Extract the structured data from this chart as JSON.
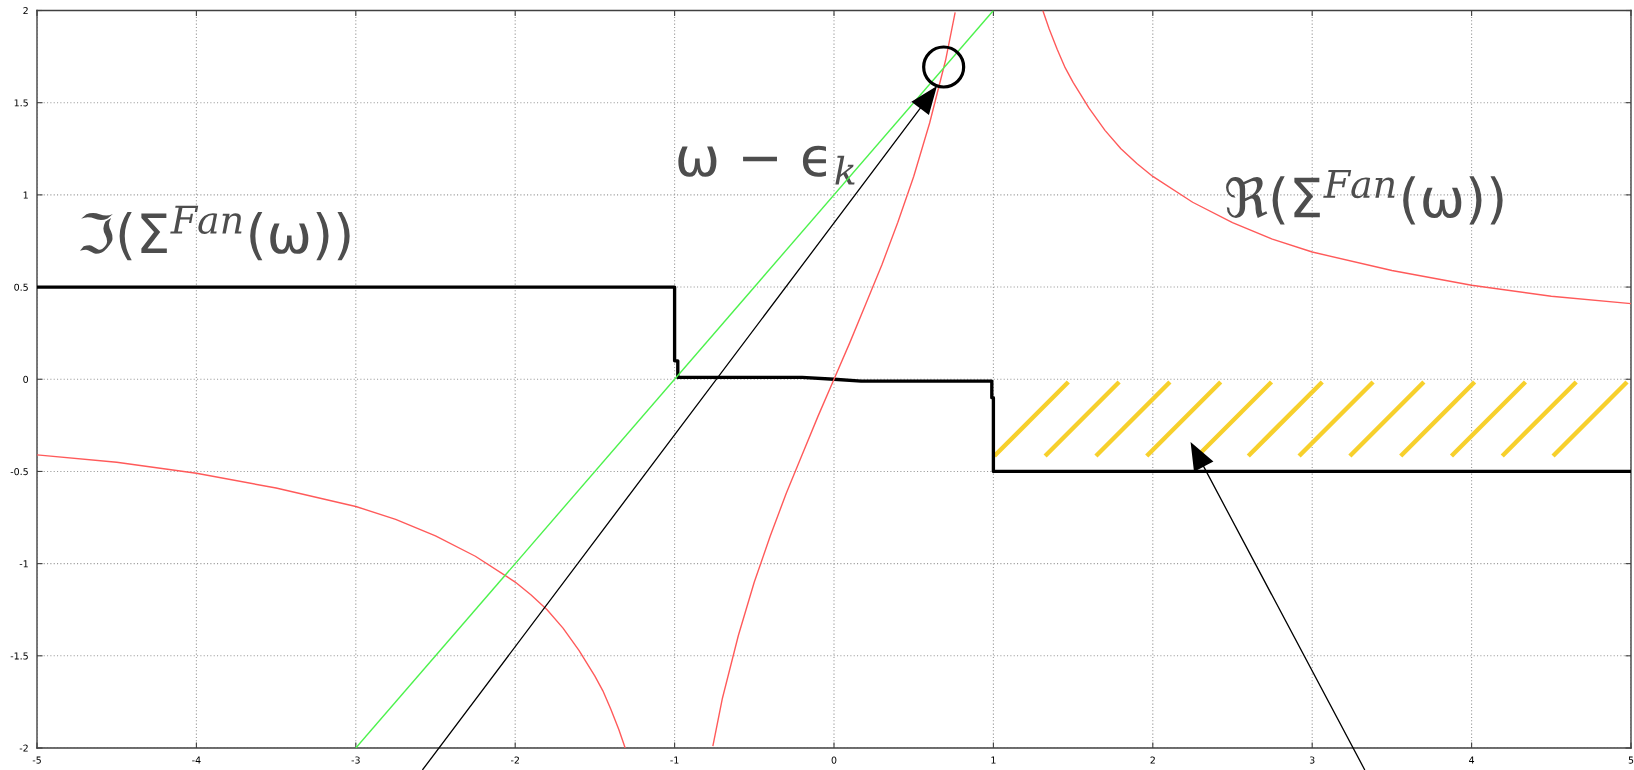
{
  "chart_data": {
    "type": "line",
    "series": [
      {
        "name": "ℑ(Σ$^{Fan}$(ω))",
        "color": "#000000",
        "x": [
          -5,
          -1,
          -1,
          -0.98,
          -0.98,
          -0.2,
          0,
          0.17,
          0.99,
          0.99,
          1,
          1,
          5
        ],
        "values": [
          0.5,
          0.5,
          0.1,
          0.1,
          0.01,
          0.01,
          0,
          -0.01,
          -0.01,
          -0.1,
          -0.1,
          -0.5,
          -0.5
        ]
      },
      {
        "name": "ℜ(Σ$^{Fan}$(ω))",
        "color": "#ff5a5a",
        "x": [
          -5,
          -4.5,
          -4,
          -3.5,
          -3,
          -2.75,
          -2.5,
          -2.25,
          -2,
          -1.9,
          -1.8,
          -1.7,
          -1.6,
          -1.5,
          -1.45,
          -1.4,
          -1.35,
          -1.31,
          -1,
          -0.76,
          -0.7,
          -0.6,
          -0.5,
          -0.4,
          -0.3,
          -0.2,
          -0.1,
          0,
          0.1,
          0.2,
          0.3,
          0.4,
          0.5,
          0.6,
          0.7,
          0.76,
          1,
          1.31,
          1.35,
          1.4,
          1.45,
          1.5,
          1.6,
          1.7,
          1.8,
          1.9,
          2,
          2.25,
          2.5,
          2.75,
          3,
          3.5,
          4,
          4.5,
          5
        ],
        "values": [
          -0.41,
          -0.45,
          -0.51,
          -0.59,
          -0.69,
          -0.76,
          -0.85,
          -0.96,
          -1.1,
          -1.17,
          -1.25,
          -1.35,
          -1.47,
          -1.61,
          -1.69,
          -1.79,
          -1.9,
          -2,
          null,
          -1.99,
          -1.73,
          -1.39,
          -1.1,
          -0.85,
          -0.62,
          -0.41,
          -0.2,
          0,
          0.2,
          0.41,
          0.62,
          0.85,
          1.1,
          1.39,
          1.73,
          1.99,
          null,
          2,
          1.9,
          1.79,
          1.69,
          1.61,
          1.47,
          1.35,
          1.25,
          1.17,
          1.1,
          0.96,
          0.85,
          0.76,
          0.69,
          0.59,
          0.51,
          0.45,
          0.41
        ]
      },
      {
        "name": "ω − ϵ$_{k}$",
        "color": "#4cf24c",
        "x": [
          -3,
          1
        ],
        "values": [
          -2,
          2
        ]
      }
    ],
    "xlim": [
      -5,
      5
    ],
    "ylim": [
      -2,
      2
    ],
    "xticks": [
      -5,
      -4,
      -3,
      -2,
      -1,
      0,
      1,
      2,
      3,
      4,
      5
    ],
    "yticks": [
      -2,
      -1.5,
      -1,
      -0.5,
      0,
      0.5,
      1,
      1.5,
      2
    ],
    "grid": true
  }
}
